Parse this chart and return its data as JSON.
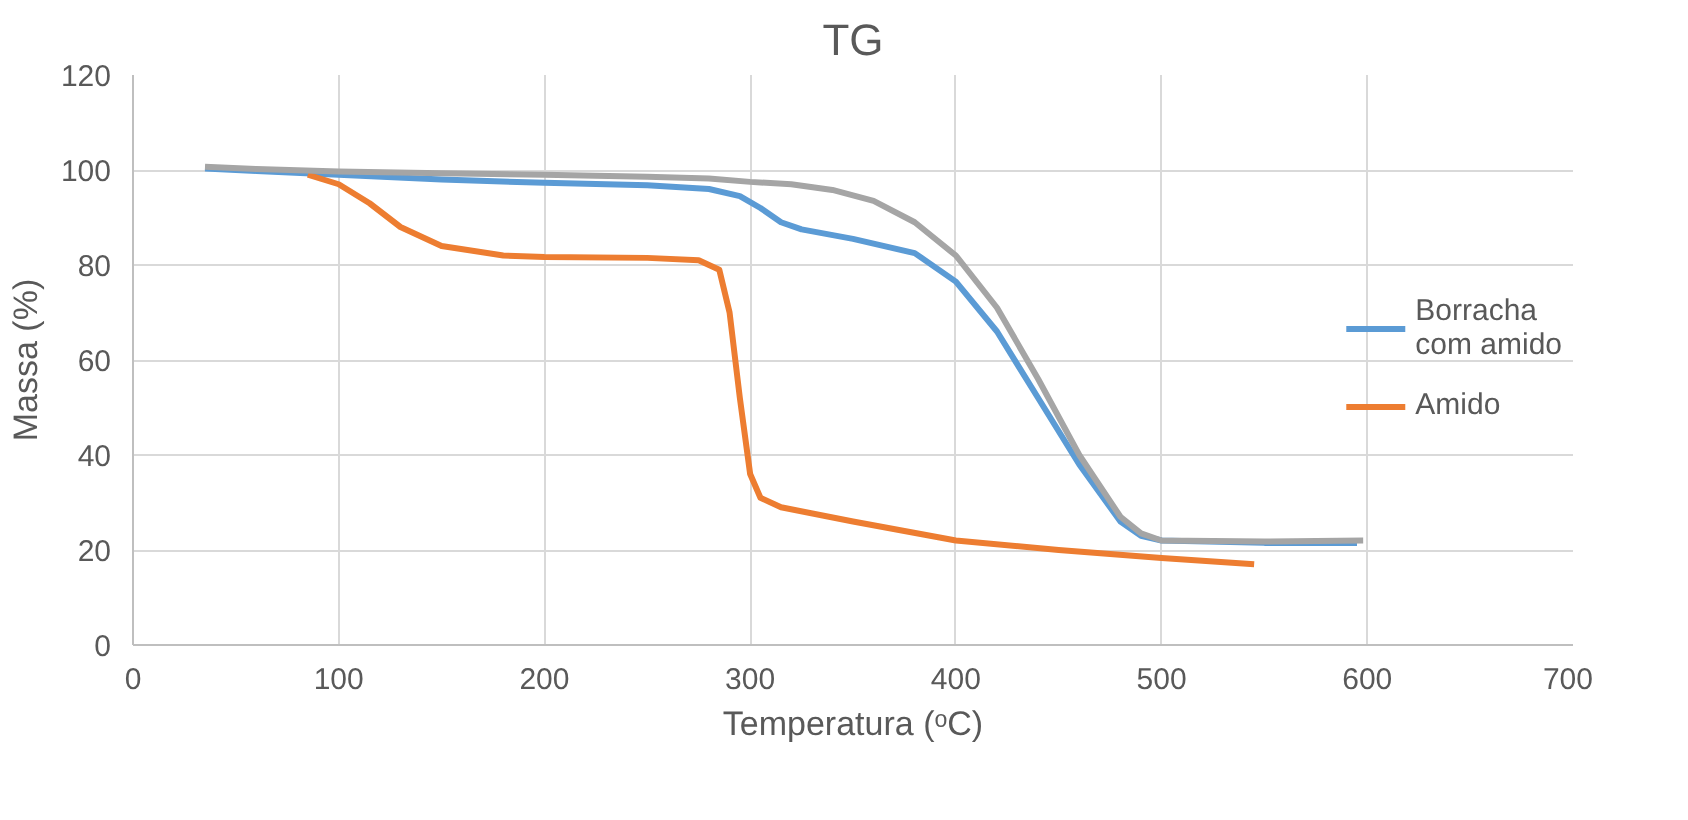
{
  "chart_data": {
    "type": "line",
    "title": "TG",
    "xlabel": "Temperatura (ᵒC)",
    "ylabel": "Massa (%)",
    "xlim": [
      0,
      700
    ],
    "ylim": [
      0,
      120
    ],
    "xticks": [
      0,
      100,
      200,
      300,
      400,
      500,
      600,
      700
    ],
    "yticks": [
      0,
      20,
      40,
      60,
      80,
      100,
      120
    ],
    "grid": true,
    "legend": "right",
    "series": [
      {
        "name": "Borracha com amido",
        "color": "#5b9bd5",
        "x": [
          35,
          60,
          100,
          150,
          200,
          250,
          280,
          295,
          305,
          315,
          325,
          350,
          380,
          400,
          420,
          440,
          460,
          480,
          490,
          500,
          550,
          595
        ],
        "values": [
          100.3,
          99.8,
          99,
          98,
          97.3,
          96.8,
          96,
          94.5,
          92,
          89,
          87.5,
          85.5,
          82.5,
          76.5,
          66,
          52,
          38,
          26,
          23,
          22,
          21.5,
          21.5
        ]
      },
      {
        "name": "Amido",
        "color": "#ed7d31",
        "x": [
          85,
          100,
          115,
          130,
          150,
          180,
          200,
          250,
          275,
          285,
          290,
          295,
          300,
          305,
          315,
          350,
          400,
          450,
          500,
          545
        ],
        "values": [
          99,
          97,
          93,
          88,
          84,
          82,
          81.7,
          81.5,
          81,
          79,
          70,
          52,
          36,
          31,
          29,
          26,
          22,
          20,
          18.3,
          17
        ]
      },
      {
        "color": "#a5a5a5",
        "x": [
          35,
          60,
          100,
          150,
          200,
          250,
          280,
          300,
          320,
          340,
          360,
          380,
          400,
          420,
          440,
          460,
          480,
          490,
          500,
          550,
          598
        ],
        "values": [
          100.7,
          100.2,
          99.7,
          99.3,
          99,
          98.6,
          98.2,
          97.5,
          97,
          95.8,
          93.5,
          89,
          82,
          71,
          56,
          40,
          27,
          23.5,
          22,
          21.8,
          22
        ]
      }
    ]
  }
}
